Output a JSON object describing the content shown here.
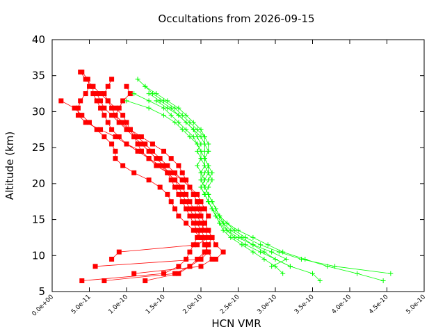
{
  "chart_data": {
    "type": "scatter",
    "title": "Occultations from 2026-09-15",
    "xlabel": "HCN VMR",
    "ylabel": "Altitude (km)",
    "xlim": [
      0,
      5e-10
    ],
    "ylim": [
      5,
      40
    ],
    "x_ticks": [
      "0.0e+00",
      "5.0e-11",
      "1.0e-10",
      "1.5e-10",
      "2.0e-10",
      "2.5e-10",
      "3.0e-10",
      "3.5e-10",
      "4.0e-10",
      "4.5e-10",
      "5.0e-10"
    ],
    "y_ticks": [
      "5",
      "10",
      "15",
      "20",
      "25",
      "30",
      "35",
      "40"
    ],
    "grid": false,
    "legend": "none",
    "series": [
      {
        "color": "#ff0000",
        "marker": "square",
        "profiles": [
          {
            "alt": [
              35.5,
              34.5,
              33.5,
              32.5,
              31.5,
              30.5,
              29.5,
              28.5,
              27.5,
              26.5,
              25.5,
              24.5,
              23.5,
              22.5,
              21.5,
              20.5,
              19.5,
              18.5,
              17.5,
              16.5,
              15.5,
              14.5,
              13.5,
              12.5,
              11.5,
              10.5,
              9.5,
              8.5,
              7.5,
              6.5
            ],
            "vmr": [
              3.8e-11,
              4.5e-11,
              5.5e-11,
              6.5e-11,
              7.5e-11,
              8e-11,
              8.5e-11,
              9.5e-11,
              1.05e-10,
              1.15e-10,
              1.25e-10,
              1.35e-10,
              1.45e-10,
              1.55e-10,
              1.65e-10,
              1.75e-10,
              1.85e-10,
              1.95e-10,
              2e-10,
              2.05e-10,
              2.1e-10,
              2.05e-10,
              2e-10,
              1.95e-10,
              1.9e-10,
              1.85e-10,
              1.8e-10,
              1.7e-10,
              1.5e-10,
              4e-11
            ]
          },
          {
            "alt": [
              35.5,
              34.5,
              33.5,
              32.5,
              31.5,
              30.5,
              29.5,
              28.5,
              27.5,
              26.5,
              25.5,
              24.5,
              23.5,
              22.5,
              21.5,
              20.5,
              19.5,
              18.5,
              17.5,
              16.5,
              15.5,
              14.5,
              13.5,
              12.5,
              11.5,
              10.5,
              9.5,
              8.5
            ],
            "vmr": [
              4e-11,
              4.8e-11,
              5e-11,
              4.5e-11,
              3.8e-11,
              3.5e-11,
              3.5e-11,
              4.5e-11,
              6.5e-11,
              8.5e-11,
              1e-10,
              1.2e-10,
              1.3e-10,
              1.4e-10,
              1.55e-10,
              1.65e-10,
              1.7e-10,
              1.75e-10,
              1.8e-10,
              1.85e-10,
              1.9e-10,
              1.95e-10,
              2e-10,
              2.05e-10,
              2.1e-10,
              2.05e-10,
              2e-10,
              5.8e-11
            ]
          },
          {
            "alt": [
              34.5,
              33.5,
              32.5,
              31.5,
              30.5,
              29.5,
              28.5,
              27.5,
              26.5,
              25.5,
              24.5,
              23.5,
              22.5,
              21.5,
              20.5,
              19.5,
              18.5,
              17.5,
              16.5,
              15.5,
              14.5,
              13.5,
              12.5,
              11.5,
              10.5,
              9.5,
              8.5,
              7.5,
              6.5
            ],
            "vmr": [
              8e-11,
              7.5e-11,
              7e-11,
              7.5e-11,
              8.5e-11,
              9.5e-11,
              1e-10,
              1.05e-10,
              1.1e-10,
              1.15e-10,
              1.2e-10,
              1.3e-10,
              1.45e-10,
              1.6e-10,
              1.75e-10,
              1.85e-10,
              1.9e-10,
              1.95e-10,
              2e-10,
              2e-10,
              2.05e-10,
              2.1e-10,
              2.15e-10,
              2.1e-10,
              2.05e-10,
              1.95e-10,
              1.85e-10,
              1.7e-10,
              1.25e-10
            ]
          },
          {
            "alt": [
              33.5,
              32.5,
              31.5,
              30.5,
              29.5,
              28.5,
              27.5,
              26.5,
              25.5,
              24.5,
              23.5,
              22.5,
              21.5,
              20.5,
              19.5,
              18.5,
              17.5,
              16.5,
              15.5,
              14.5,
              13.5,
              12.5,
              11.5,
              10.5,
              9.5,
              8.5,
              7.5
            ],
            "vmr": [
              1e-10,
              1.05e-10,
              9.5e-11,
              9e-11,
              8.5e-11,
              9e-11,
              1e-10,
              1.1e-10,
              1.2e-10,
              1.3e-10,
              1.4e-10,
              1.5e-10,
              1.55e-10,
              1.6e-10,
              1.65e-10,
              1.7e-10,
              1.75e-10,
              1.8e-10,
              1.85e-10,
              1.9e-10,
              1.95e-10,
              2e-10,
              2.05e-10,
              2.1e-10,
              2.15e-10,
              2e-10,
              1.1e-10
            ]
          },
          {
            "alt": [
              31.5,
              30.5,
              29.5,
              28.5,
              27.5,
              26.5,
              25.5,
              24.5,
              23.5,
              22.5,
              21.5,
              20.5,
              19.5,
              18.5,
              17.5,
              16.5,
              15.5,
              14.5,
              13.5,
              12.5,
              11.5,
              10.5,
              9.5,
              8.5,
              7.5,
              6.5
            ],
            "vmr": [
              1.2e-11,
              3e-11,
              4e-11,
              5e-11,
              6e-11,
              7e-11,
              8e-11,
              8.5e-11,
              8.5e-11,
              9.5e-11,
              1.1e-10,
              1.3e-10,
              1.45e-10,
              1.55e-10,
              1.6e-10,
              1.65e-10,
              1.7e-10,
              1.8e-10,
              1.9e-10,
              2e-10,
              2.05e-10,
              2.1e-10,
              2e-10,
              1.85e-10,
              1.65e-10,
              7e-11
            ]
          },
          {
            "alt": [
              32.5,
              31.5,
              30.5,
              29.5,
              28.5,
              27.5,
              26.5,
              25.5,
              24.5,
              23.5,
              22.5,
              21.5,
              20.5,
              19.5,
              18.5,
              17.5,
              16.5,
              15.5,
              14.5,
              13.5,
              12.5,
              11.5,
              10.5,
              9.5
            ],
            "vmr": [
              6e-11,
              6.5e-11,
              7e-11,
              8e-11,
              9e-11,
              1.05e-10,
              1.2e-10,
              1.35e-10,
              1.5e-10,
              1.6e-10,
              1.7e-10,
              1.75e-10,
              1.8e-10,
              1.85e-10,
              1.9e-10,
              1.95e-10,
              1.95e-10,
              2e-10,
              2.05e-10,
              2.1e-10,
              2.15e-10,
              2.2e-10,
              2.3e-10,
              2.2e-10
            ]
          },
          {
            "alt": [
              33.5,
              32.5,
              31.5,
              30.5,
              29.5,
              28.5,
              27.5,
              26.5,
              25.5,
              24.5,
              23.5,
              22.5,
              21.5,
              20.5,
              19.5,
              18.5,
              17.5,
              16.5,
              15.5,
              14.5,
              13.5,
              12.5,
              11.5,
              10.5,
              9.5
            ],
            "vmr": [
              5.5e-11,
              5.5e-11,
              6e-11,
              6.5e-11,
              7e-11,
              7.5e-11,
              8e-11,
              9e-11,
              1e-10,
              1.15e-10,
              1.3e-10,
              1.45e-10,
              1.55e-10,
              1.65e-10,
              1.75e-10,
              1.8e-10,
              1.85e-10,
              1.9e-10,
              1.95e-10,
              2e-10,
              2.05e-10,
              2.1e-10,
              1.95e-10,
              9e-11,
              8e-11
            ]
          }
        ]
      },
      {
        "color": "#00ff00",
        "marker": "plus",
        "profiles": [
          {
            "alt": [
              34.5,
              33.5,
              32.5,
              31.5,
              30.5,
              29.5,
              28.5,
              27.5,
              26.5,
              25.5,
              24.5,
              23.5,
              22.5,
              21.5,
              20.5,
              19.5,
              18.5,
              17.5,
              16.5,
              15.5,
              14.5,
              13.5,
              12.5,
              11.5,
              10.5,
              9.5,
              8.5,
              7.5,
              6.5
            ],
            "vmr": [
              1.15e-10,
              1.25e-10,
              1.4e-10,
              1.55e-10,
              1.7e-10,
              1.8e-10,
              1.9e-10,
              2e-10,
              2.05e-10,
              2.05e-10,
              2.05e-10,
              2.05e-10,
              2.05e-10,
              2e-10,
              2e-10,
              2.05e-10,
              2.1e-10,
              2.1e-10,
              2.15e-10,
              2.25e-10,
              2.35e-10,
              2.5e-10,
              2.7e-10,
              2.9e-10,
              3.1e-10,
              3.4e-10,
              3.7e-10,
              4.1e-10,
              4.45e-10
            ]
          },
          {
            "alt": [
              33.5,
              32.5,
              31.5,
              30.5,
              29.5,
              28.5,
              27.5,
              26.5,
              25.5,
              24.5,
              23.5,
              22.5,
              21.5,
              20.5,
              19.5,
              18.5,
              17.5,
              16.5,
              15.5,
              14.5,
              13.5,
              12.5,
              11.5,
              10.5,
              9.5,
              8.5,
              7.5
            ],
            "vmr": [
              1.25e-10,
              1.35e-10,
              1.5e-10,
              1.65e-10,
              1.75e-10,
              1.85e-10,
              1.95e-10,
              2.05e-10,
              2.1e-10,
              2.1e-10,
              2.05e-10,
              2.1e-10,
              2.05e-10,
              2e-10,
              2.05e-10,
              2.1e-10,
              2.15e-10,
              2.2e-10,
              2.25e-10,
              2.35e-10,
              2.45e-10,
              2.6e-10,
              2.8e-10,
              3.05e-10,
              3.35e-10,
              3.8e-10,
              4.55e-10
            ]
          },
          {
            "alt": [
              32.5,
              31.5,
              30.5,
              29.5,
              28.5,
              27.5,
              26.5,
              25.5,
              24.5,
              23.5,
              22.5,
              21.5,
              20.5,
              19.5,
              18.5,
              17.5,
              16.5,
              15.5,
              14.5,
              13.5,
              12.5,
              11.5,
              10.5,
              9.5,
              8.5,
              7.5,
              6.5
            ],
            "vmr": [
              1.1e-10,
              1.3e-10,
              1.5e-10,
              1.6e-10,
              1.7e-10,
              1.8e-10,
              1.9e-10,
              1.95e-10,
              2e-10,
              2e-10,
              1.95e-10,
              2e-10,
              2.05e-10,
              2e-10,
              2.05e-10,
              2.1e-10,
              2.15e-10,
              2.2e-10,
              2.3e-10,
              2.4e-10,
              2.55e-10,
              2.7e-10,
              2.85e-10,
              3e-10,
              3.2e-10,
              3.5e-10,
              3.6e-10
            ]
          },
          {
            "alt": [
              31.5,
              30.5,
              29.5,
              28.5,
              27.5,
              26.5,
              25.5,
              24.5,
              23.5,
              22.5,
              21.5,
              20.5,
              19.5,
              18.5,
              17.5,
              16.5,
              15.5,
              14.5,
              13.5,
              12.5,
              11.5,
              10.5,
              9.5,
              8.5,
              7.5
            ],
            "vmr": [
              1e-10,
              1.3e-10,
              1.5e-10,
              1.65e-10,
              1.75e-10,
              1.85e-10,
              1.95e-10,
              2e-10,
              2.05e-10,
              2.1e-10,
              2.1e-10,
              2.05e-10,
              2e-10,
              2.05e-10,
              2.1e-10,
              2.15e-10,
              2.2e-10,
              2.25e-10,
              2.3e-10,
              2.4e-10,
              2.55e-10,
              2.7e-10,
              2.85e-10,
              3e-10,
              3.1e-10
            ]
          },
          {
            "alt": [
              32.5,
              31.5,
              30.5,
              29.5,
              28.5,
              27.5,
              26.5,
              25.5,
              24.5,
              23.5,
              22.5,
              21.5,
              20.5,
              19.5,
              18.5,
              17.5,
              16.5,
              15.5,
              14.5,
              13.5,
              12.5,
              11.5,
              10.5,
              9.5,
              8.5
            ],
            "vmr": [
              1.3e-10,
              1.45e-10,
              1.6e-10,
              1.7e-10,
              1.8e-10,
              1.9e-10,
              1.95e-10,
              2e-10,
              1.95e-10,
              2e-10,
              2.05e-10,
              2.1e-10,
              2.15e-10,
              2.1e-10,
              2.05e-10,
              2.1e-10,
              2.15e-10,
              2.2e-10,
              2.25e-10,
              2.35e-10,
              2.5e-10,
              2.7e-10,
              2.95e-10,
              3.15e-10,
              2.95e-10
            ]
          },
          {
            "alt": [
              31.5,
              30.5,
              29.5,
              28.5,
              27.5,
              26.5,
              25.5,
              24.5,
              23.5,
              22.5,
              21.5,
              20.5,
              19.5,
              18.5,
              17.5,
              16.5,
              15.5,
              14.5,
              13.5,
              12.5,
              11.5,
              10.5,
              9.5,
              8.5
            ],
            "vmr": [
              1.4e-10,
              1.55e-10,
              1.7e-10,
              1.8e-10,
              1.9e-10,
              2e-10,
              2.05e-10,
              2.1e-10,
              2.05e-10,
              2.1e-10,
              2.15e-10,
              2.1e-10,
              2.05e-10,
              2.1e-10,
              2.15e-10,
              2.2e-10,
              2.25e-10,
              2.3e-10,
              2.35e-10,
              2.45e-10,
              2.6e-10,
              2.8e-10,
              3e-10,
              3.2e-10
            ]
          }
        ]
      }
    ]
  }
}
